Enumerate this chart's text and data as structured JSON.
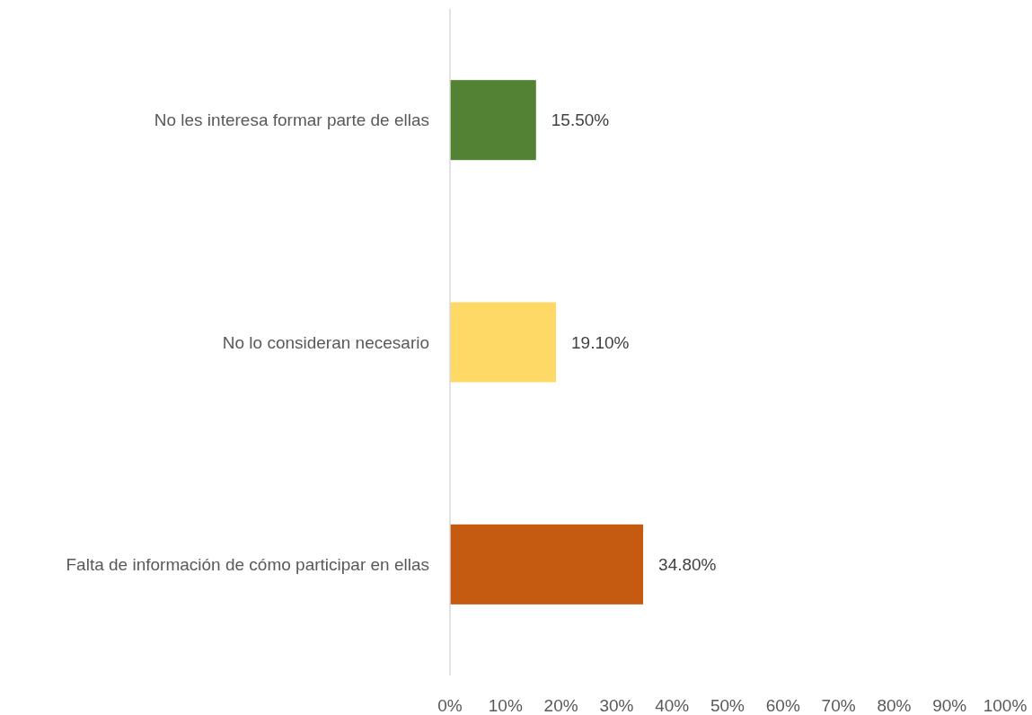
{
  "chart_data": {
    "type": "bar",
    "orientation": "horizontal",
    "categories": [
      "No les interesa formar parte de ellas",
      "No lo consideran necesario",
      "Falta de información de cómo participar en ellas"
    ],
    "values": [
      15.5,
      19.1,
      34.8
    ],
    "colors": [
      "#548235",
      "#ffd966",
      "#c55a11"
    ],
    "value_labels": [
      "15.50%",
      "19.10%",
      "34.80%"
    ],
    "xlim": [
      0,
      100
    ],
    "xticks": [
      {
        "value": 0,
        "label": "0%"
      },
      {
        "value": 10,
        "label": "10%"
      },
      {
        "value": 20,
        "label": "20%"
      },
      {
        "value": 30,
        "label": "30%"
      },
      {
        "value": 40,
        "label": "40%"
      },
      {
        "value": 50,
        "label": "50%"
      },
      {
        "value": 60,
        "label": "60%"
      },
      {
        "value": 70,
        "label": "70%"
      },
      {
        "value": 80,
        "label": "80%"
      },
      {
        "value": 90,
        "label": "90%"
      },
      {
        "value": 100,
        "label": "100%"
      }
    ],
    "grid": false
  }
}
